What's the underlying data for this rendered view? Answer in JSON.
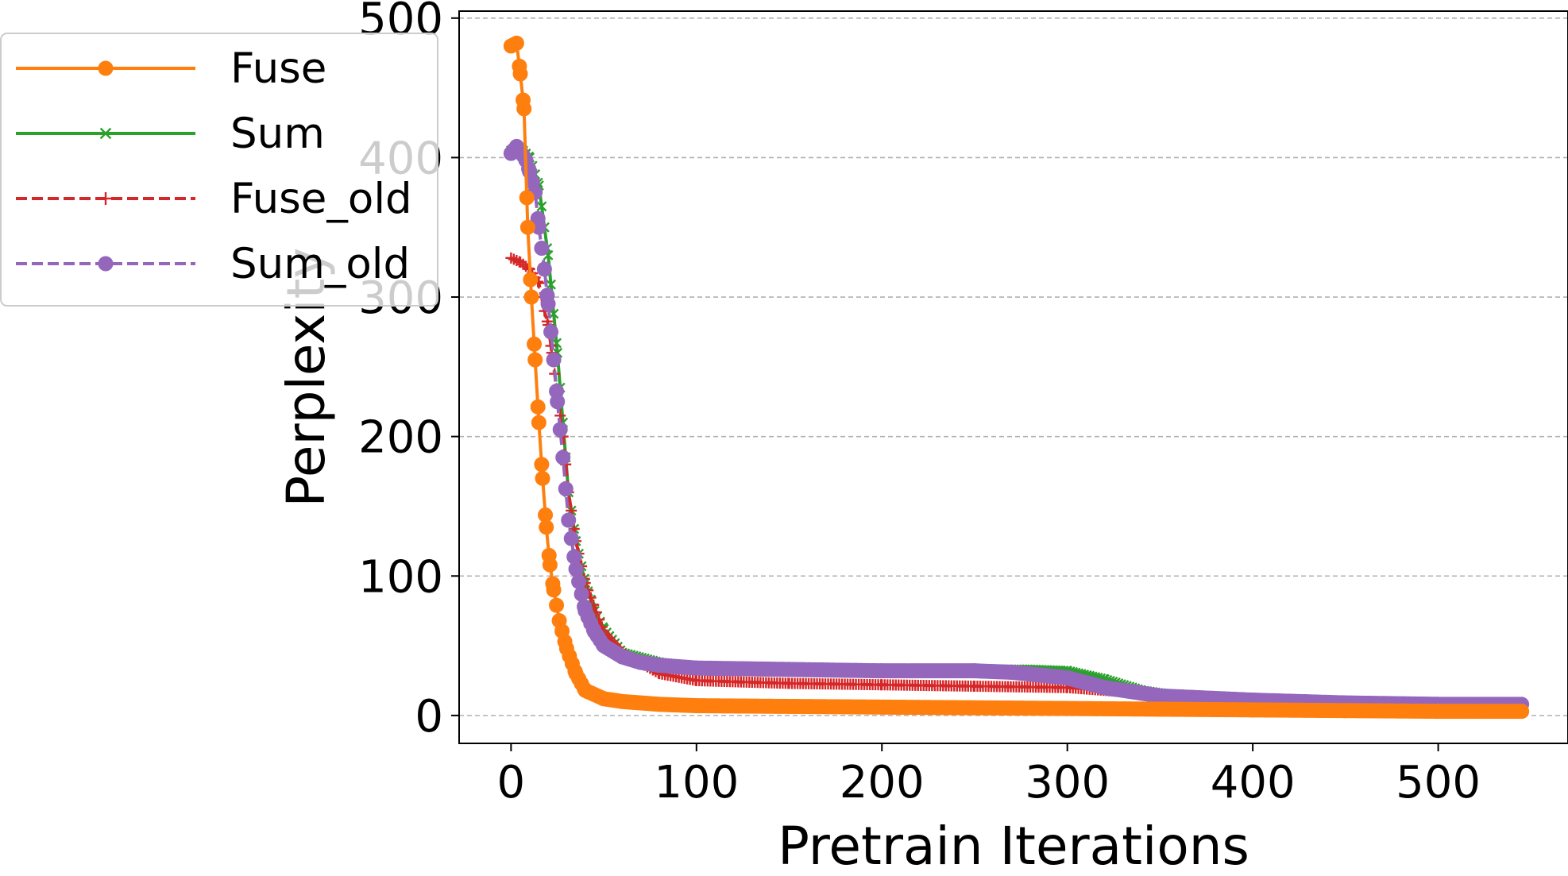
{
  "chart_data": {
    "type": "line",
    "title": "",
    "xlabel": "Pretrain Iterations",
    "ylabel": "Perplexity",
    "xlim": [
      -28,
      570
    ],
    "ylim": [
      -20,
      505
    ],
    "xticks": [
      0,
      100,
      200,
      300,
      400,
      500
    ],
    "yticks": [
      0,
      100,
      200,
      300,
      400,
      500
    ],
    "xtick_labels": [
      "0",
      "100",
      "200",
      "300",
      "400",
      "500"
    ],
    "ytick_labels": [
      "0",
      "100",
      "200",
      "300",
      "400",
      "500"
    ],
    "grid": "horizontal-dashed",
    "legend_position": "upper-left",
    "series": [
      {
        "name": "Fuse",
        "color": "#ff7f0e",
        "dash": "solid",
        "marker": "circle",
        "x": [
          0,
          3,
          5,
          7,
          9,
          11,
          13,
          15,
          17,
          19,
          21,
          23,
          26,
          30,
          35,
          40,
          50,
          60,
          80,
          100,
          150,
          200,
          250,
          300,
          350,
          400,
          450,
          500,
          545
        ],
        "y": [
          480,
          482,
          460,
          435,
          350,
          300,
          255,
          210,
          170,
          135,
          108,
          90,
          68,
          48,
          30,
          18,
          12,
          10,
          8,
          7,
          6.5,
          6,
          5.5,
          5,
          4.5,
          4,
          3.5,
          3,
          3
        ]
      },
      {
        "name": "Sum",
        "color": "#2ca02c",
        "dash": "solid",
        "marker": "x",
        "x": [
          0,
          5,
          10,
          15,
          20,
          25,
          28,
          31,
          35,
          40,
          45,
          50,
          60,
          80,
          100,
          150,
          200,
          250,
          280,
          300,
          320,
          340,
          360,
          400,
          450,
          500,
          545
        ],
        "y": [
          405,
          407,
          400,
          380,
          330,
          260,
          210,
          160,
          125,
          95,
          75,
          62,
          45,
          38,
          35,
          34,
          33,
          33,
          33,
          32,
          26,
          18,
          14,
          11,
          9,
          8,
          8
        ]
      },
      {
        "name": "Fuse_old",
        "color": "#d62728",
        "dash": "dashed",
        "marker": "plus",
        "x": [
          0,
          5,
          10,
          15,
          18,
          20,
          22,
          25,
          28,
          31,
          35,
          40,
          50,
          60,
          80,
          100,
          150,
          200,
          250,
          300,
          350,
          400,
          450,
          500,
          545
        ],
        "y": [
          328,
          325,
          320,
          310,
          290,
          280,
          260,
          230,
          200,
          160,
          125,
          95,
          60,
          45,
          30,
          25,
          23,
          22,
          21,
          20,
          15,
          11,
          9,
          8,
          8
        ]
      },
      {
        "name": "Sum_old",
        "color": "#9467bd",
        "dash": "dashed",
        "marker": "circle",
        "x": [
          0,
          3,
          5,
          8,
          10,
          13,
          15,
          18,
          20,
          23,
          25,
          28,
          31,
          35,
          40,
          45,
          50,
          60,
          70,
          80,
          100,
          150,
          200,
          250,
          270,
          300,
          320,
          350,
          400,
          450,
          500,
          545
        ],
        "y": [
          403,
          408,
          405,
          398,
          390,
          375,
          350,
          320,
          295,
          255,
          225,
          185,
          140,
          105,
          75,
          60,
          50,
          42,
          38,
          36,
          34,
          33,
          32,
          32,
          31,
          27,
          20,
          14,
          11,
          9,
          8,
          8
        ]
      }
    ]
  }
}
